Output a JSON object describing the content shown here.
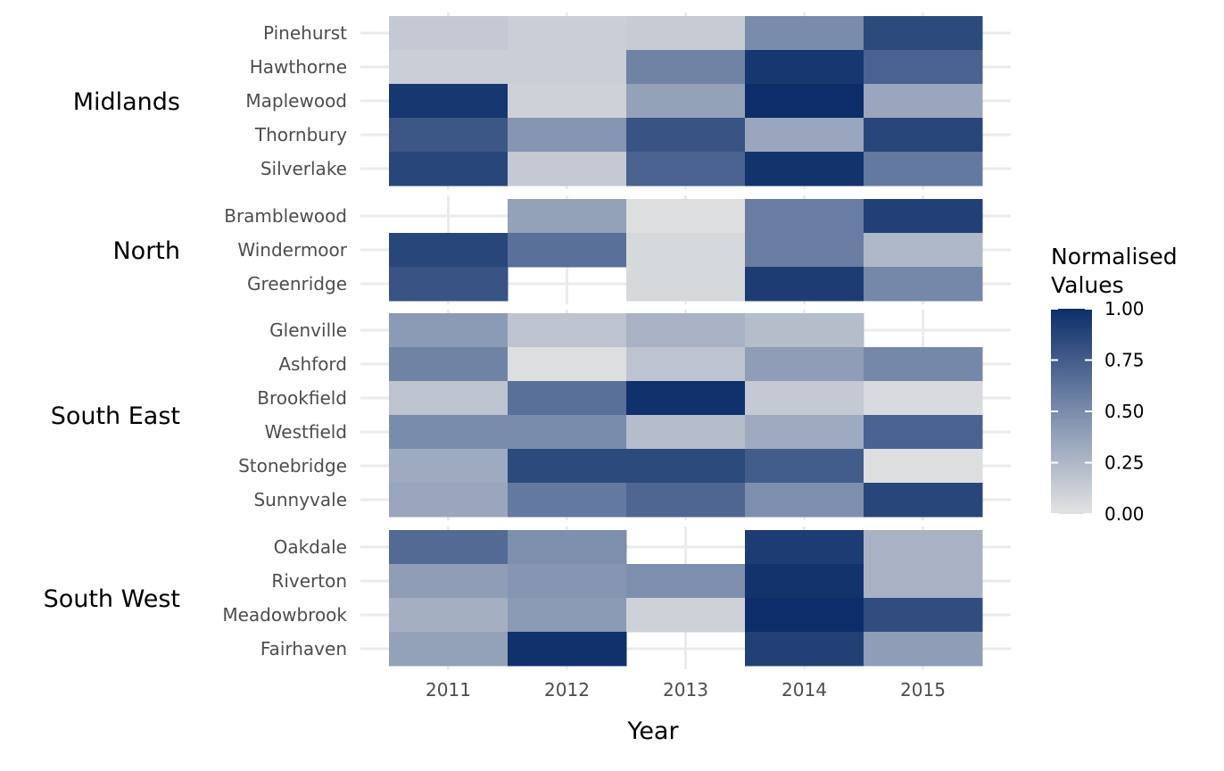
{
  "chart_data": {
    "type": "heatmap",
    "xlabel": "Year",
    "x": [
      "2011",
      "2012",
      "2013",
      "2014",
      "2015"
    ],
    "legend": {
      "title_lines": [
        "Normalised",
        "Values"
      ],
      "ticks": [
        "0.00",
        "0.25",
        "0.50",
        "0.75",
        "1.00"
      ],
      "range": [
        0,
        1
      ],
      "color_low": "#e3e3e3",
      "color_high": "#0c2d69",
      "placement": "right"
    },
    "grid": true,
    "facets": [
      {
        "name": "Midlands",
        "rows": [
          {
            "label": "Pinehurst",
            "values": [
              0.15,
              0.12,
              0.14,
              0.5,
              0.85
            ]
          },
          {
            "label": "Hawthorne",
            "values": [
              0.12,
              0.12,
              0.55,
              0.95,
              0.72
            ]
          },
          {
            "label": "Maplewood",
            "values": [
              0.95,
              0.1,
              0.38,
              1.0,
              0.35
            ]
          },
          {
            "label": "Thornbury",
            "values": [
              0.78,
              0.45,
              0.8,
              0.35,
              0.87
            ]
          },
          {
            "label": "Silverlake",
            "values": [
              0.87,
              0.15,
              0.72,
              0.97,
              0.6
            ]
          }
        ]
      },
      {
        "name": "North",
        "rows": [
          {
            "label": "Bramblewood",
            "values": [
              null,
              0.38,
              0.03,
              0.58,
              0.9
            ]
          },
          {
            "label": "Windermoor",
            "values": [
              0.87,
              0.65,
              0.06,
              0.58,
              0.25
            ]
          },
          {
            "label": "Greenridge",
            "values": [
              0.8,
              null,
              0.06,
              0.92,
              0.52
            ]
          }
        ]
      },
      {
        "name": "South East",
        "rows": [
          {
            "label": "Glenville",
            "values": [
              0.42,
              0.18,
              0.28,
              0.22,
              null
            ]
          },
          {
            "label": "Ashford",
            "values": [
              0.55,
              0.03,
              0.18,
              0.4,
              0.52
            ]
          },
          {
            "label": "Brookfield",
            "values": [
              0.18,
              0.65,
              0.98,
              0.15,
              0.05
            ]
          },
          {
            "label": "Westfield",
            "values": [
              0.5,
              0.5,
              0.22,
              0.33,
              0.72
            ]
          },
          {
            "label": "Stonebridge",
            "values": [
              0.33,
              0.85,
              0.85,
              0.75,
              0.03
            ]
          },
          {
            "label": "Sunnyvale",
            "values": [
              0.35,
              0.6,
              0.7,
              0.48,
              0.87
            ]
          }
        ]
      },
      {
        "name": "South West",
        "rows": [
          {
            "label": "Oakdale",
            "values": [
              0.68,
              0.48,
              null,
              0.92,
              0.28
            ]
          },
          {
            "label": "Riverton",
            "values": [
              0.4,
              0.45,
              0.48,
              0.97,
              0.28
            ]
          },
          {
            "label": "Meadowbrook",
            "values": [
              0.3,
              0.42,
              0.1,
              1.0,
              0.83
            ]
          },
          {
            "label": "Fairhaven",
            "values": [
              0.38,
              0.98,
              null,
              0.9,
              0.4
            ]
          }
        ]
      }
    ]
  }
}
